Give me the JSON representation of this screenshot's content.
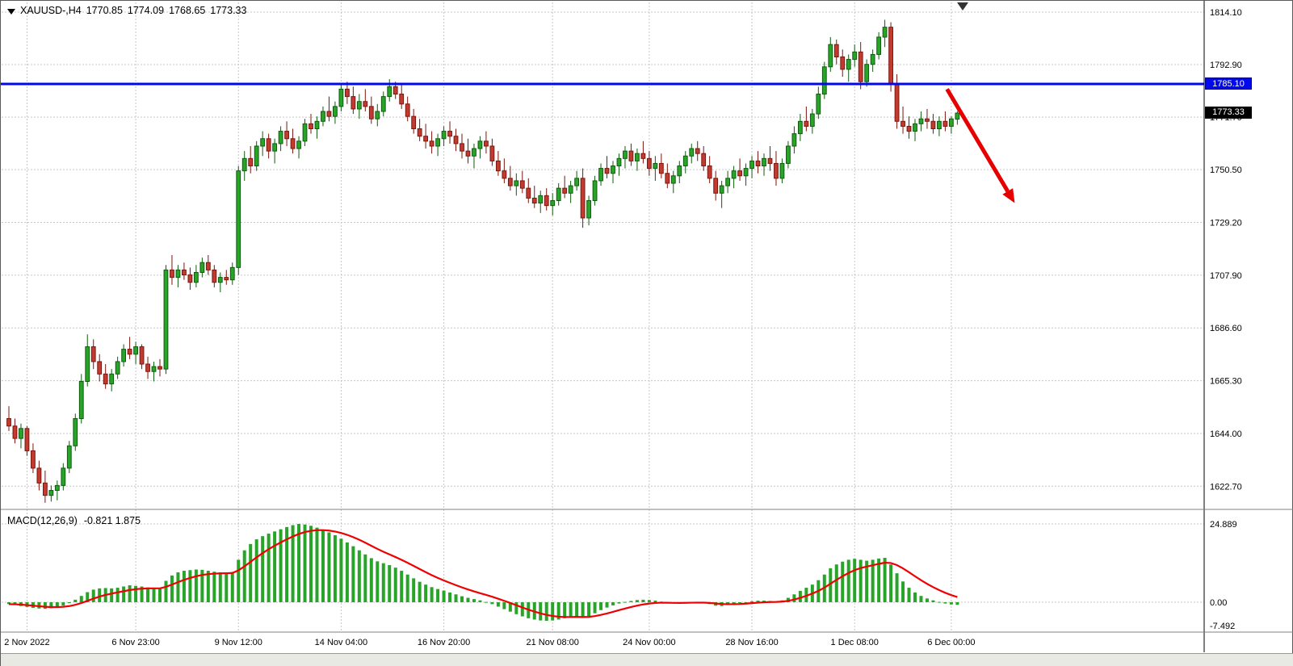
{
  "window": {
    "symbol_tf": "XAUUSD-,H4",
    "ohlc_text": {
      "open": "1770.85",
      "high": "1774.09",
      "low": "1768.65",
      "close": "1773.33"
    }
  },
  "price_axis": {
    "levels": [
      1814.1,
      1792.9,
      1771.7,
      1750.5,
      1729.2,
      1707.9,
      1686.6,
      1665.3,
      1644.0,
      1622.7
    ],
    "line_tag": "1785.10",
    "current_tag": "1773.33"
  },
  "time_axis": {
    "labels": [
      {
        "text": "2 Nov 2022",
        "idx": 3
      },
      {
        "text": "6 Nov 23:00",
        "idx": 21
      },
      {
        "text": "9 Nov 12:00",
        "idx": 38
      },
      {
        "text": "14 Nov 04:00",
        "idx": 55
      },
      {
        "text": "16 Nov 20:00",
        "idx": 72
      },
      {
        "text": "21 Nov 08:00",
        "idx": 90
      },
      {
        "text": "24 Nov 00:00",
        "idx": 106
      },
      {
        "text": "28 Nov 16:00",
        "idx": 123
      },
      {
        "text": "1 Dec 08:00",
        "idx": 140
      },
      {
        "text": "6 Dec 00:00",
        "idx": 156
      }
    ]
  },
  "macd_panel": {
    "label": "MACD(12,26,9)",
    "values_text": "-0.821 1.875",
    "axis": [
      {
        "text": "24.889",
        "value": 24.889
      },
      {
        "text": "0.00",
        "value": 0
      },
      {
        "text": "-7.492",
        "value": -7.492
      }
    ]
  },
  "chart_data": {
    "type": "candlestick",
    "symbol": "XAUUSD-",
    "timeframe": "H4",
    "title": "XAUUSD-,H4 1770.85 1774.09 1768.65 1773.33",
    "price_range": [
      1614,
      1818
    ],
    "grid": true,
    "candles": [
      [
        1650,
        1655,
        1645,
        1647
      ],
      [
        1647,
        1650,
        1640,
        1642
      ],
      [
        1642,
        1648,
        1638,
        1646
      ],
      [
        1646,
        1647,
        1635,
        1637
      ],
      [
        1637,
        1640,
        1628,
        1630
      ],
      [
        1630,
        1633,
        1621,
        1624
      ],
      [
        1624,
        1629,
        1616,
        1619
      ],
      [
        1619,
        1623,
        1616.5,
        1621
      ],
      [
        1621,
        1625,
        1617,
        1623
      ],
      [
        1623,
        1632,
        1621,
        1630
      ],
      [
        1630,
        1641,
        1628,
        1639
      ],
      [
        1639,
        1652,
        1637,
        1650
      ],
      [
        1650,
        1668,
        1648,
        1665
      ],
      [
        1665,
        1684,
        1663,
        1679
      ],
      [
        1679,
        1682,
        1670,
        1673
      ],
      [
        1673,
        1676,
        1665,
        1668
      ],
      [
        1668,
        1672,
        1662,
        1664
      ],
      [
        1664,
        1670,
        1661,
        1668
      ],
      [
        1668,
        1675,
        1666,
        1673
      ],
      [
        1673,
        1680,
        1671,
        1678
      ],
      [
        1678,
        1683,
        1674,
        1676
      ],
      [
        1676,
        1681,
        1672,
        1679
      ],
      [
        1679,
        1680,
        1670,
        1672
      ],
      [
        1672,
        1675,
        1666,
        1669
      ],
      [
        1669,
        1673,
        1665,
        1671
      ],
      [
        1671,
        1674,
        1667,
        1670
      ],
      [
        1670,
        1712,
        1668,
        1710
      ],
      [
        1710,
        1716,
        1704,
        1707
      ],
      [
        1707,
        1712,
        1703,
        1710
      ],
      [
        1710,
        1713,
        1706,
        1708
      ],
      [
        1708,
        1711,
        1702,
        1705
      ],
      [
        1705,
        1712,
        1703,
        1709
      ],
      [
        1709,
        1715,
        1707,
        1713
      ],
      [
        1713,
        1716,
        1708,
        1710
      ],
      [
        1710,
        1712,
        1703,
        1705
      ],
      [
        1705,
        1709,
        1701,
        1707
      ],
      [
        1707,
        1710,
        1704,
        1706
      ],
      [
        1706,
        1713,
        1704,
        1711
      ],
      [
        1711,
        1752,
        1708,
        1750
      ],
      [
        1750,
        1758,
        1746,
        1755
      ],
      [
        1755,
        1760,
        1749,
        1752
      ],
      [
        1752,
        1762,
        1750,
        1760
      ],
      [
        1760,
        1766,
        1756,
        1763
      ],
      [
        1763,
        1765,
        1755,
        1758
      ],
      [
        1758,
        1763,
        1753,
        1761
      ],
      [
        1761,
        1768,
        1758,
        1766
      ],
      [
        1766,
        1770,
        1760,
        1763
      ],
      [
        1763,
        1767,
        1757,
        1759
      ],
      [
        1759,
        1764,
        1755,
        1762
      ],
      [
        1762,
        1771,
        1760,
        1769
      ],
      [
        1769,
        1773,
        1765,
        1767
      ],
      [
        1767,
        1772,
        1763,
        1770
      ],
      [
        1770,
        1776,
        1768,
        1774
      ],
      [
        1774,
        1780,
        1770,
        1772
      ],
      [
        1772,
        1778,
        1769,
        1776
      ],
      [
        1776,
        1785,
        1774,
        1783
      ],
      [
        1783,
        1786,
        1777,
        1780
      ],
      [
        1780,
        1784,
        1773,
        1775
      ],
      [
        1775,
        1781,
        1771,
        1778
      ],
      [
        1778,
        1783,
        1774,
        1776
      ],
      [
        1776,
        1780,
        1769,
        1771
      ],
      [
        1771,
        1777,
        1768,
        1774
      ],
      [
        1774,
        1782,
        1772,
        1780
      ],
      [
        1780,
        1787,
        1778,
        1784
      ],
      [
        1784,
        1786,
        1779,
        1781
      ],
      [
        1781,
        1785,
        1775,
        1777
      ],
      [
        1777,
        1780,
        1770,
        1772
      ],
      [
        1772,
        1775,
        1765,
        1767
      ],
      [
        1767,
        1771,
        1762,
        1764
      ],
      [
        1764,
        1769,
        1759,
        1762
      ],
      [
        1762,
        1766,
        1757,
        1760
      ],
      [
        1760,
        1765,
        1756,
        1763
      ],
      [
        1763,
        1768,
        1760,
        1766
      ],
      [
        1766,
        1770,
        1761,
        1764
      ],
      [
        1764,
        1767,
        1758,
        1761
      ],
      [
        1761,
        1765,
        1755,
        1758
      ],
      [
        1758,
        1763,
        1753,
        1756
      ],
      [
        1756,
        1761,
        1751,
        1759
      ],
      [
        1759,
        1764,
        1755,
        1762
      ],
      [
        1762,
        1766,
        1757,
        1760
      ],
      [
        1760,
        1763,
        1752,
        1754
      ],
      [
        1754,
        1758,
        1748,
        1750
      ],
      [
        1750,
        1755,
        1745,
        1747
      ],
      [
        1747,
        1752,
        1742,
        1744
      ],
      [
        1744,
        1749,
        1740,
        1746
      ],
      [
        1746,
        1750,
        1741,
        1743
      ],
      [
        1743,
        1747,
        1737,
        1739
      ],
      [
        1739,
        1744,
        1735,
        1737
      ],
      [
        1737,
        1742,
        1733,
        1740
      ],
      [
        1740,
        1743,
        1734,
        1736
      ],
      [
        1736,
        1741,
        1732,
        1738
      ],
      [
        1738,
        1745,
        1736,
        1743
      ],
      [
        1743,
        1748,
        1739,
        1741
      ],
      [
        1741,
        1746,
        1737,
        1744
      ],
      [
        1744,
        1750,
        1742,
        1747
      ],
      [
        1747,
        1751,
        1727,
        1731
      ],
      [
        1731,
        1740,
        1728,
        1738
      ],
      [
        1738,
        1748,
        1736,
        1746
      ],
      [
        1746,
        1753,
        1744,
        1751
      ],
      [
        1751,
        1756,
        1747,
        1749
      ],
      [
        1749,
        1754,
        1745,
        1752
      ],
      [
        1752,
        1757,
        1748,
        1755
      ],
      [
        1755,
        1760,
        1751,
        1758
      ],
      [
        1758,
        1761,
        1752,
        1754
      ],
      [
        1754,
        1759,
        1750,
        1757
      ],
      [
        1757,
        1762,
        1753,
        1755
      ],
      [
        1755,
        1758,
        1748,
        1751
      ],
      [
        1751,
        1756,
        1746,
        1753
      ],
      [
        1753,
        1757,
        1747,
        1749
      ],
      [
        1749,
        1753,
        1743,
        1745
      ],
      [
        1745,
        1750,
        1741,
        1748
      ],
      [
        1748,
        1754,
        1745,
        1752
      ],
      [
        1752,
        1758,
        1749,
        1756
      ],
      [
        1756,
        1761,
        1753,
        1759
      ],
      [
        1759,
        1762,
        1754,
        1757
      ],
      [
        1757,
        1760,
        1750,
        1752
      ],
      [
        1752,
        1756,
        1745,
        1747
      ],
      [
        1747,
        1750,
        1738,
        1741
      ],
      [
        1741,
        1746,
        1735,
        1744
      ],
      [
        1744,
        1750,
        1741,
        1747
      ],
      [
        1747,
        1752,
        1743,
        1750
      ],
      [
        1750,
        1755,
        1746,
        1748
      ],
      [
        1748,
        1753,
        1744,
        1751
      ],
      [
        1751,
        1756,
        1747,
        1754
      ],
      [
        1754,
        1758,
        1749,
        1752
      ],
      [
        1752,
        1757,
        1748,
        1755
      ],
      [
        1755,
        1760,
        1750,
        1753
      ],
      [
        1753,
        1758,
        1744,
        1747
      ],
      [
        1747,
        1755,
        1745,
        1753
      ],
      [
        1753,
        1762,
        1751,
        1760
      ],
      [
        1760,
        1768,
        1757,
        1765
      ],
      [
        1765,
        1773,
        1762,
        1770
      ],
      [
        1770,
        1776,
        1766,
        1768
      ],
      [
        1768,
        1775,
        1765,
        1773
      ],
      [
        1773,
        1784,
        1771,
        1781
      ],
      [
        1781,
        1794,
        1779,
        1792
      ],
      [
        1792,
        1804,
        1790,
        1801
      ],
      [
        1801,
        1803,
        1793,
        1796
      ],
      [
        1796,
        1799,
        1788,
        1791
      ],
      [
        1791,
        1797,
        1786,
        1795
      ],
      [
        1795,
        1801,
        1792,
        1798
      ],
      [
        1798,
        1802,
        1783,
        1786
      ],
      [
        1786,
        1795,
        1784,
        1793
      ],
      [
        1793,
        1799,
        1790,
        1797
      ],
      [
        1797,
        1806,
        1795,
        1804
      ],
      [
        1804,
        1811,
        1800,
        1808
      ],
      [
        1808,
        1810,
        1782,
        1785
      ],
      [
        1785,
        1789,
        1767,
        1770
      ],
      [
        1770,
        1776,
        1765,
        1768
      ],
      [
        1768,
        1772,
        1763,
        1766
      ],
      [
        1766,
        1771,
        1762,
        1769
      ],
      [
        1769,
        1774,
        1766,
        1771
      ],
      [
        1771,
        1775,
        1767,
        1770
      ],
      [
        1770,
        1773,
        1765,
        1767
      ],
      [
        1767,
        1772,
        1764,
        1770
      ],
      [
        1770,
        1774,
        1766,
        1768
      ],
      [
        1768,
        1772,
        1765,
        1771
      ],
      [
        1770.85,
        1774.09,
        1768.65,
        1773.33
      ]
    ],
    "indicator": {
      "name": "MACD(12,26,9)",
      "style": "histogram+signal",
      "signal_period": 9,
      "range": [
        -9.5,
        29
      ],
      "last_values": {
        "macd": -0.821,
        "signal": 1.875
      },
      "histogram": [
        -0.6,
        -0.9,
        -1.2,
        -1.5,
        -1.8,
        -2.0,
        -2.1,
        -1.9,
        -1.6,
        -1.1,
        -0.3,
        0.8,
        2.0,
        3.2,
        4.0,
        4.4,
        4.5,
        4.4,
        4.6,
        5.0,
        5.4,
        5.2,
        5.0,
        4.7,
        4.5,
        4.4,
        6.8,
        8.5,
        9.5,
        10.0,
        10.2,
        10.4,
        10.3,
        10.0,
        9.7,
        9.5,
        9.4,
        9.6,
        13.5,
        16.5,
        18.5,
        20.0,
        21.0,
        21.8,
        22.5,
        23.2,
        23.9,
        24.5,
        24.9,
        24.7,
        24.3,
        23.7,
        23.0,
        22.2,
        21.3,
        20.2,
        19.0,
        17.8,
        16.5,
        15.2,
        14.0,
        13.0,
        12.4,
        11.8,
        11.0,
        10.0,
        8.8,
        7.6,
        6.5,
        5.6,
        4.8,
        4.2,
        3.7,
        3.1,
        2.5,
        1.9,
        1.4,
        1.0,
        0.6,
        0.1,
        -0.6,
        -1.4,
        -2.2,
        -3.0,
        -3.8,
        -4.5,
        -5.1,
        -5.5,
        -5.8,
        -5.9,
        -5.8,
        -5.5,
        -5.1,
        -4.7,
        -4.5,
        -4.9,
        -4.4,
        -3.5,
        -2.5,
        -1.7,
        -1.0,
        -0.4,
        0.1,
        0.4,
        0.7,
        0.8,
        0.7,
        0.5,
        0.2,
        -0.2,
        -0.4,
        -0.3,
        -0.1,
        0.1,
        0.0,
        -0.2,
        -0.6,
        -1.1,
        -1.2,
        -0.9,
        -0.6,
        -0.3,
        0.0,
        0.3,
        0.5,
        0.5,
        0.4,
        0.2,
        0.6,
        1.4,
        2.5,
        3.6,
        4.6,
        5.6,
        7.0,
        8.8,
        10.8,
        12.0,
        12.9,
        13.5,
        13.8,
        13.5,
        13.2,
        13.5,
        13.9,
        14.1,
        12.0,
        9.2,
        6.6,
        4.6,
        3.1,
        2.0,
        1.2,
        0.6,
        0.1,
        -0.4,
        -0.7,
        -0.821
      ]
    },
    "horizontal_line": {
      "price": 1785.1,
      "label": "1785.10",
      "color": "#0008f0"
    },
    "arrow_annotation": {
      "from_index": 155.3,
      "from_price": 1783,
      "to_index": 166.5,
      "to_price": 1737,
      "color": "#e60000"
    },
    "colors": {
      "up": "#28a428",
      "up_border": "#0f5c0f",
      "down": "#c23b30",
      "down_border": "#7c150d",
      "grid": "#c6c6c6",
      "hline": "#0008f0",
      "signal_line": "#f00000",
      "macd_bar": "#28a428",
      "current_tag_bg": "#000000"
    }
  }
}
